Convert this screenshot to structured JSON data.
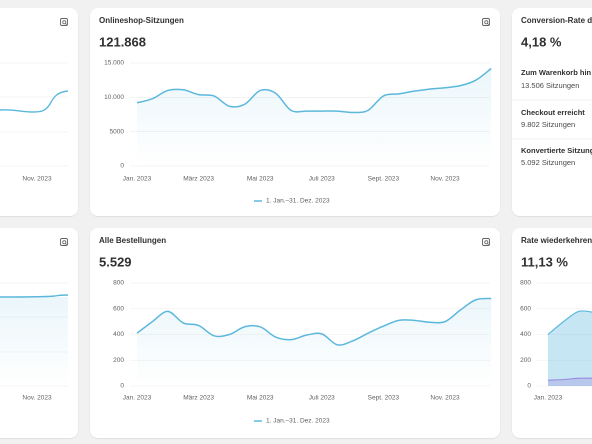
{
  "partial_cards": [
    {
      "x_label": "Nov. 2023"
    },
    {
      "x_label": "Nov. 2023"
    }
  ],
  "conversion": {
    "title": "Conversion-Rate de",
    "value": "4,18 %",
    "steps": [
      {
        "label": "Zum Warenkorb hin",
        "sessions": "13.506 Sitzungen"
      },
      {
        "label": "Checkout erreicht",
        "sessions": "9.802 Sitzungen"
      },
      {
        "label": "Konvertierte Sitzung",
        "sessions": "5.092 Sitzungen"
      }
    ]
  },
  "chart_data": [
    {
      "type": "line",
      "title": "Onlineshop-Sitzungen",
      "total": "121.868",
      "categories": [
        "Jan. 2023",
        null,
        null,
        null,
        "März 2023",
        null,
        null,
        null,
        "Mai 2023",
        null,
        null,
        null,
        "Juli 2023",
        null,
        null,
        null,
        "Sept. 2023",
        null,
        null,
        null,
        "Nov. 2023",
        null,
        null,
        null
      ],
      "series": [
        {
          "name": "1. Jan.–31. Dez. 2023",
          "color": "#5bb8dc",
          "values": [
            9200,
            9800,
            11000,
            11100,
            10400,
            10200,
            8700,
            9000,
            11000,
            10600,
            8100,
            8000,
            8000,
            8000,
            7800,
            8100,
            10200,
            10500,
            10900,
            11200,
            11400,
            11700,
            12500,
            14200
          ]
        }
      ],
      "ylim": [
        0,
        15000
      ],
      "yticks": [
        {
          "value": 15000,
          "label": "15.000"
        },
        {
          "value": 10000,
          "label": "10.000"
        },
        5000,
        0
      ]
    },
    {
      "type": "line",
      "title": "Alle Bestellungen",
      "total": "5.529",
      "categories": [
        "Jan. 2023",
        null,
        null,
        null,
        "März 2023",
        null,
        null,
        null,
        "Mai 2023",
        null,
        null,
        null,
        "Juli 2023",
        null,
        null,
        null,
        "Sept. 2023",
        null,
        null,
        null,
        "Nov. 2023",
        null,
        null,
        null
      ],
      "series": [
        {
          "name": "1. Jan.–31. Dez. 2023",
          "color": "#5bb8dc",
          "values": [
            410,
            500,
            580,
            490,
            470,
            390,
            400,
            460,
            460,
            380,
            360,
            395,
            405,
            320,
            350,
            410,
            465,
            510,
            510,
            495,
            500,
            590,
            670,
            680
          ]
        }
      ],
      "ylim": [
        0,
        800
      ],
      "yticks": [
        800,
        600,
        400,
        200,
        0
      ]
    },
    {
      "type": "area",
      "title": "Rate wiederkehrende",
      "total": "11,13 %",
      "categories": [
        "Jan. 2023",
        null,
        null,
        null
      ],
      "series": [
        {
          "color": "#5bb8dc",
          "values": [
            400,
            500,
            580,
            570
          ]
        },
        {
          "color": "#9b8fe0",
          "values": [
            45,
            50,
            60,
            60
          ]
        }
      ],
      "ylim": [
        0,
        800
      ],
      "yticks": [
        800,
        600,
        400,
        200,
        0
      ]
    }
  ]
}
